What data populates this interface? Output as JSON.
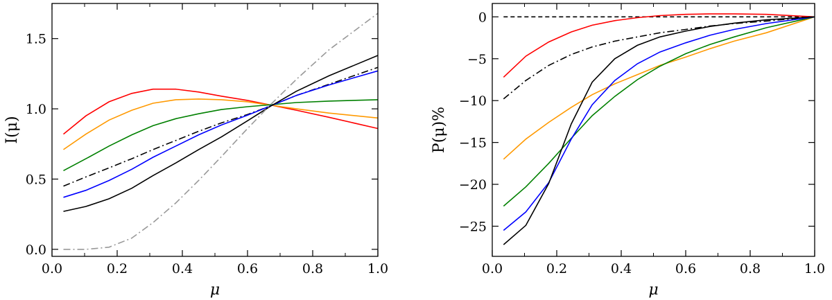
{
  "chart_data": [
    {
      "type": "line",
      "xlabel": "μ",
      "ylabel": "I(μ)",
      "xlim": [
        0.0,
        1.0
      ],
      "ylim": [
        -0.05,
        1.75
      ],
      "xticks": [
        0.0,
        0.2,
        0.4,
        0.6,
        0.8,
        1.0
      ],
      "xtick_labels": [
        "0.0",
        "0.2",
        "0.4",
        "0.6",
        "0.8",
        "1.0"
      ],
      "yticks": [
        0.0,
        0.5,
        1.0,
        1.5
      ],
      "ytick_labels": [
        "0.0",
        "0.5",
        "1.0",
        "1.5"
      ],
      "grid": false,
      "series": [
        {
          "color": "#ff0000",
          "style": "solid",
          "x": [
            0.035,
            0.104,
            0.175,
            0.245,
            0.31,
            0.38,
            0.45,
            0.52,
            0.6,
            0.675,
            0.75,
            0.85,
            1.0
          ],
          "y": [
            0.82,
            0.95,
            1.05,
            1.11,
            1.14,
            1.14,
            1.12,
            1.09,
            1.06,
            1.025,
            0.99,
            0.94,
            0.86
          ]
        },
        {
          "color": "#ff9900",
          "style": "solid",
          "x": [
            0.035,
            0.104,
            0.175,
            0.245,
            0.31,
            0.38,
            0.45,
            0.52,
            0.6,
            0.675,
            0.75,
            0.85,
            1.0
          ],
          "y": [
            0.71,
            0.82,
            0.92,
            0.99,
            1.04,
            1.065,
            1.07,
            1.065,
            1.05,
            1.025,
            1.0,
            0.97,
            0.935
          ]
        },
        {
          "color": "#008000",
          "style": "solid",
          "x": [
            0.035,
            0.104,
            0.175,
            0.245,
            0.31,
            0.38,
            0.45,
            0.52,
            0.6,
            0.675,
            0.75,
            0.85,
            1.0
          ],
          "y": [
            0.56,
            0.645,
            0.735,
            0.815,
            0.88,
            0.93,
            0.965,
            0.995,
            1.015,
            1.03,
            1.045,
            1.055,
            1.065
          ]
        },
        {
          "color": "#000000",
          "style": "dashdot",
          "x": [
            0.035,
            0.104,
            0.175,
            0.245,
            0.31,
            0.38,
            0.45,
            0.52,
            0.6,
            0.675,
            0.75,
            0.85,
            1.0
          ],
          "y": [
            0.45,
            0.515,
            0.58,
            0.645,
            0.71,
            0.775,
            0.84,
            0.9,
            0.96,
            1.025,
            1.095,
            1.175,
            1.295
          ]
        },
        {
          "color": "#0000ff",
          "style": "solid",
          "x": [
            0.035,
            0.104,
            0.175,
            0.245,
            0.31,
            0.38,
            0.45,
            0.52,
            0.6,
            0.675,
            0.75,
            0.85,
            1.0
          ],
          "y": [
            0.37,
            0.42,
            0.49,
            0.57,
            0.655,
            0.735,
            0.815,
            0.885,
            0.955,
            1.025,
            1.095,
            1.17,
            1.27
          ]
        },
        {
          "color": "#000000",
          "style": "solid",
          "x": [
            0.035,
            0.104,
            0.175,
            0.245,
            0.31,
            0.38,
            0.45,
            0.52,
            0.6,
            0.675,
            0.75,
            0.85,
            1.0
          ],
          "y": [
            0.27,
            0.305,
            0.36,
            0.435,
            0.525,
            0.615,
            0.71,
            0.8,
            0.915,
            1.025,
            1.125,
            1.235,
            1.38
          ]
        },
        {
          "color": "#999999",
          "style": "dashdot",
          "x": [
            0.035,
            0.104,
            0.175,
            0.245,
            0.31,
            0.38,
            0.45,
            0.52,
            0.6,
            0.675,
            0.75,
            0.85,
            1.0
          ],
          "y": [
            0.0,
            0.0,
            0.015,
            0.08,
            0.19,
            0.33,
            0.49,
            0.66,
            0.86,
            1.04,
            1.21,
            1.42,
            1.68
          ]
        }
      ]
    },
    {
      "type": "line",
      "xlabel": "μ",
      "ylabel": "P(μ)%",
      "xlim": [
        0.0,
        1.0
      ],
      "ylim": [
        -28.6,
        1.6
      ],
      "xticks": [
        0.0,
        0.2,
        0.4,
        0.6,
        0.8,
        1.0
      ],
      "xtick_labels": [
        "0.0",
        "0.2",
        "0.4",
        "0.6",
        "0.8",
        "1.0"
      ],
      "yticks": [
        0,
        -5,
        -10,
        -15,
        -20,
        -25
      ],
      "ytick_labels": [
        "0",
        "−5",
        "−10",
        "−15",
        "−20",
        "−25"
      ],
      "grid": false,
      "series": [
        {
          "color": "#000000",
          "style": "dashed",
          "x": [
            0.035,
            1.0
          ],
          "y": [
            0,
            0
          ]
        },
        {
          "color": "#ff0000",
          "style": "solid",
          "x": [
            0.035,
            0.104,
            0.175,
            0.245,
            0.31,
            0.38,
            0.45,
            0.52,
            0.6,
            0.675,
            0.75,
            0.85,
            1.0
          ],
          "y": [
            -7.2,
            -4.7,
            -3.0,
            -1.8,
            -1.0,
            -0.45,
            -0.1,
            0.15,
            0.3,
            0.35,
            0.35,
            0.3,
            0.0
          ]
        },
        {
          "color": "#000000",
          "style": "dashdot",
          "x": [
            0.035,
            0.104,
            0.175,
            0.245,
            0.31,
            0.38,
            0.45,
            0.52,
            0.6,
            0.675,
            0.75,
            0.85,
            1.0
          ],
          "y": [
            -9.8,
            -7.6,
            -5.8,
            -4.5,
            -3.6,
            -2.9,
            -2.4,
            -1.9,
            -1.5,
            -1.1,
            -0.8,
            -0.5,
            0.0
          ]
        },
        {
          "color": "#ff9900",
          "style": "solid",
          "x": [
            0.035,
            0.104,
            0.175,
            0.245,
            0.31,
            0.38,
            0.45,
            0.52,
            0.6,
            0.675,
            0.75,
            0.85,
            1.0
          ],
          "y": [
            -17.0,
            -14.6,
            -12.6,
            -10.8,
            -9.3,
            -8.0,
            -6.9,
            -5.8,
            -4.8,
            -3.8,
            -2.9,
            -1.9,
            0.0
          ]
        },
        {
          "color": "#008000",
          "style": "solid",
          "x": [
            0.035,
            0.104,
            0.175,
            0.245,
            0.31,
            0.38,
            0.45,
            0.52,
            0.6,
            0.675,
            0.75,
            0.85,
            1.0
          ],
          "y": [
            -22.6,
            -20.3,
            -17.5,
            -14.5,
            -11.8,
            -9.5,
            -7.5,
            -5.9,
            -4.4,
            -3.3,
            -2.4,
            -1.3,
            0.0
          ]
        },
        {
          "color": "#0000ff",
          "style": "solid",
          "x": [
            0.035,
            0.104,
            0.175,
            0.245,
            0.31,
            0.38,
            0.45,
            0.52,
            0.6,
            0.675,
            0.75,
            0.85,
            1.0
          ],
          "y": [
            -25.5,
            -23.3,
            -19.8,
            -14.6,
            -10.5,
            -7.6,
            -5.6,
            -4.2,
            -3.1,
            -2.2,
            -1.5,
            -0.8,
            0.0
          ]
        },
        {
          "color": "#000000",
          "style": "solid",
          "x": [
            0.035,
            0.104,
            0.175,
            0.245,
            0.31,
            0.38,
            0.45,
            0.52,
            0.6,
            0.675,
            0.75,
            0.85,
            1.0
          ],
          "y": [
            -27.2,
            -24.9,
            -19.9,
            -12.8,
            -7.8,
            -5.0,
            -3.4,
            -2.4,
            -1.7,
            -1.15,
            -0.75,
            -0.35,
            0.0
          ]
        }
      ]
    }
  ]
}
